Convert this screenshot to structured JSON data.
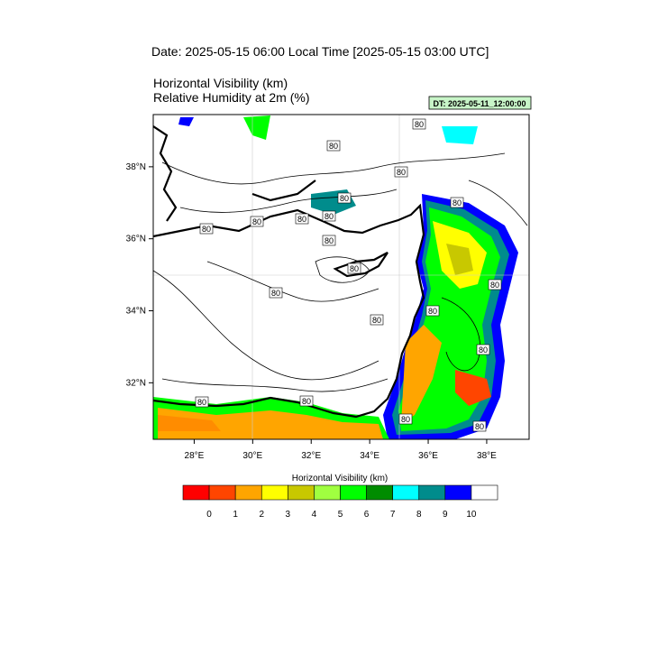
{
  "title": "Date: 2025-05-15  06:00 Local Time [2025-05-15  03:00 UTC]",
  "subtitle_lines": [
    "Horizontal Visibility   (km)",
    "Relative Humidity at 2m   (%)"
  ],
  "dt_label": "DT: 2025-05-11_12:00:00",
  "map": {
    "lonlim": [
      26.6,
      39.45
    ],
    "latlim": [
      30.43,
      39.45
    ],
    "lon_ticks": [
      {
        "value": 28,
        "label": "28°E"
      },
      {
        "value": 30,
        "label": "30°E"
      },
      {
        "value": 32,
        "label": "32°E"
      },
      {
        "value": 34,
        "label": "34°E"
      },
      {
        "value": 36,
        "label": "36°E"
      },
      {
        "value": 38,
        "label": "38°E"
      }
    ],
    "lat_ticks": [
      {
        "value": 32,
        "label": "32°N"
      },
      {
        "value": 34,
        "label": "34°N"
      },
      {
        "value": 36,
        "label": "36°N"
      },
      {
        "value": 38,
        "label": "38°N"
      }
    ],
    "contour_labels": [
      "80",
      "80",
      "80",
      "80",
      "80",
      "80",
      "80",
      "80",
      "80",
      "80",
      "80",
      "80",
      "80",
      "80",
      "80",
      "80",
      "80",
      "80",
      "80",
      "80"
    ]
  },
  "colorbar": {
    "title": "Horizontal Visibility  (km)",
    "colors": [
      "#ff0000",
      "#ff4500",
      "#ffa500",
      "#ffff00",
      "#c8c800",
      "#a0ff40",
      "#00ff00",
      "#008c00",
      "#00ffff",
      "#008c8c",
      "#0000ff",
      "#ffffff"
    ],
    "labels": [
      "0",
      "1",
      "2",
      "3",
      "4",
      "5",
      "6",
      "7",
      "8",
      "9",
      "10"
    ]
  }
}
